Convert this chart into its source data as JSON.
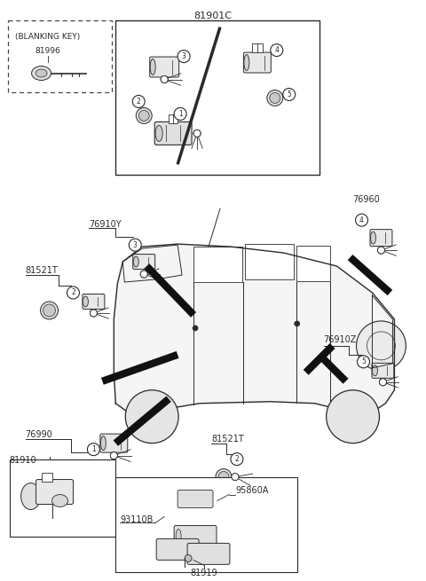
{
  "bg_color": "#ffffff",
  "fig_width": 4.8,
  "fig_height": 6.55,
  "dpi": 100,
  "lc": "#2a2a2a",
  "labels": {
    "main_top": "81901C",
    "blanking_key_title": "(BLANKING KEY)",
    "p81996": "81996",
    "p76910Y": "76910Y",
    "p81521T_left": "81521T",
    "p76960": "76960",
    "p76910Z": "76910Z",
    "p81521T_bot": "81521T",
    "p76990": "76990",
    "p81910": "81910",
    "p95860A": "95860A",
    "p93110B": "93110B",
    "p81919": "81919"
  }
}
